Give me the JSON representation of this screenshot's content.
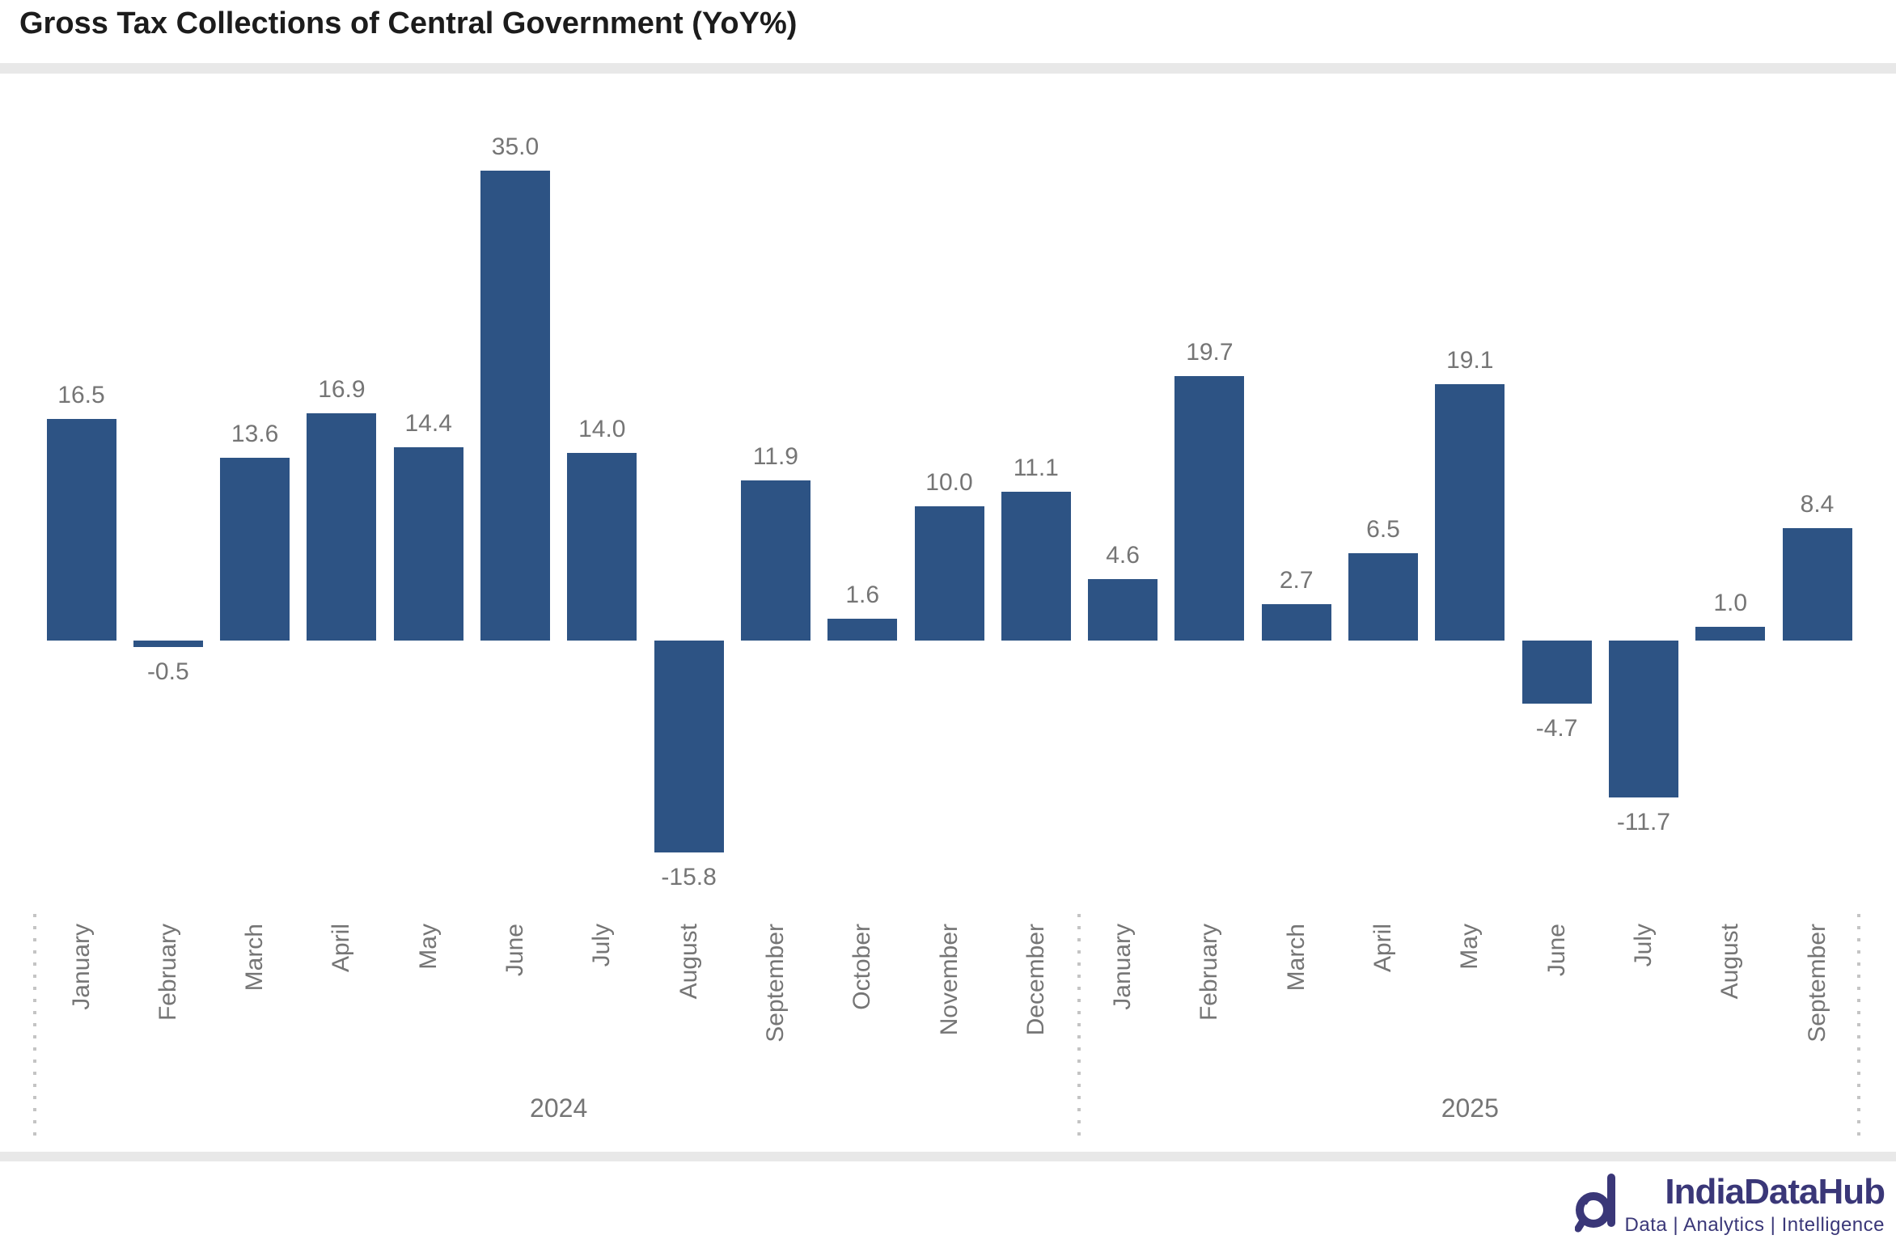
{
  "title": "Gross Tax Collections of Central Government (YoY%)",
  "chart_data": {
    "type": "bar",
    "title": "Gross Tax Collections of Central Government (YoY%)",
    "unit": "YoY %",
    "bar_color": "#2D5384",
    "label_color": "#757575",
    "value_format": "one-decimal",
    "grid": false,
    "ylim": [
      -18,
      38
    ],
    "series": [
      {
        "year": "2024",
        "categories": [
          "January",
          "February",
          "March",
          "April",
          "May",
          "June",
          "July",
          "August",
          "September",
          "October",
          "November",
          "December"
        ],
        "values": [
          16.5,
          -0.5,
          13.6,
          16.9,
          14.4,
          35.0,
          14.0,
          -15.8,
          11.9,
          1.6,
          10.0,
          11.1
        ]
      },
      {
        "year": "2025",
        "categories": [
          "January",
          "February",
          "March",
          "April",
          "May",
          "June",
          "July",
          "August",
          "September"
        ],
        "values": [
          4.6,
          19.7,
          2.7,
          6.5,
          19.1,
          -4.7,
          -11.7,
          1.0,
          8.4
        ]
      }
    ]
  },
  "footer": {
    "brand": "IndiaDataHub",
    "tagline": "Data | Analytics | Intelligence"
  }
}
